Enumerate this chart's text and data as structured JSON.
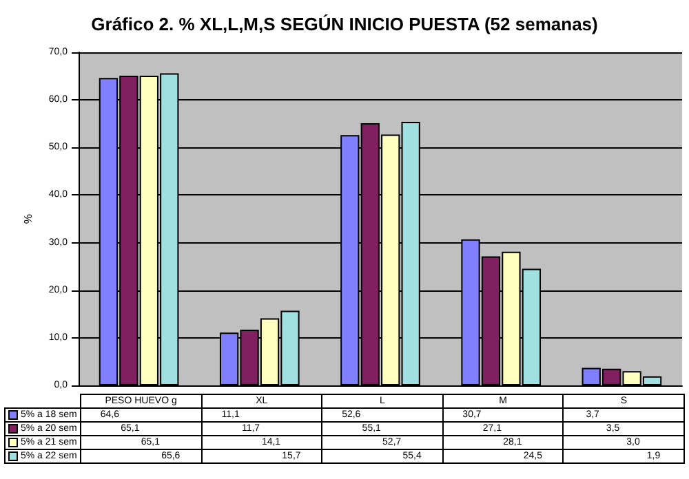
{
  "chart_data": {
    "type": "bar",
    "title": "Gráfico 2. % XL,L,M,S SEGÚN INICIO PUESTA (52 semanas)",
    "ylabel": "%",
    "categories": [
      "PESO HUEVO g",
      "XL",
      "L",
      "M",
      "S"
    ],
    "series": [
      {
        "name": "5% a 18 sem",
        "color": "#8080ff",
        "values": [
          64.6,
          11.1,
          52.6,
          30.7,
          3.7
        ],
        "value_labels": [
          "64,6",
          "11,1",
          "52,6",
          "30,7",
          "3,7"
        ]
      },
      {
        "name": "5% a 20 sem",
        "color": "#802060",
        "values": [
          65.1,
          11.7,
          55.1,
          27.1,
          3.5
        ],
        "value_labels": [
          "65,1",
          "11,7",
          "55,1",
          "27,1",
          "3,5"
        ]
      },
      {
        "name": "5% a 21 sem",
        "color": "#ffffc0",
        "values": [
          65.1,
          14.1,
          52.7,
          28.1,
          3.0
        ],
        "value_labels": [
          "65,1",
          "14,1",
          "52,7",
          "28,1",
          "3,0"
        ]
      },
      {
        "name": "5% a 22 sem",
        "color": "#a0e0e0",
        "values": [
          65.6,
          15.7,
          55.4,
          24.5,
          1.9
        ],
        "value_labels": [
          "65,6",
          "15,7",
          "55,4",
          "24,5",
          "1,9"
        ]
      }
    ],
    "ylim": [
      0,
      70
    ],
    "yticks": [
      {
        "value": 0,
        "label": "0,0"
      },
      {
        "value": 10,
        "label": "10,0"
      },
      {
        "value": 20,
        "label": "20,0"
      },
      {
        "value": 30,
        "label": "30,0"
      },
      {
        "value": 40,
        "label": "40,0"
      },
      {
        "value": 50,
        "label": "50,0"
      },
      {
        "value": 60,
        "label": "60,0"
      },
      {
        "value": 70,
        "label": "70,0"
      }
    ],
    "grid": "y",
    "legend": "bottom"
  }
}
